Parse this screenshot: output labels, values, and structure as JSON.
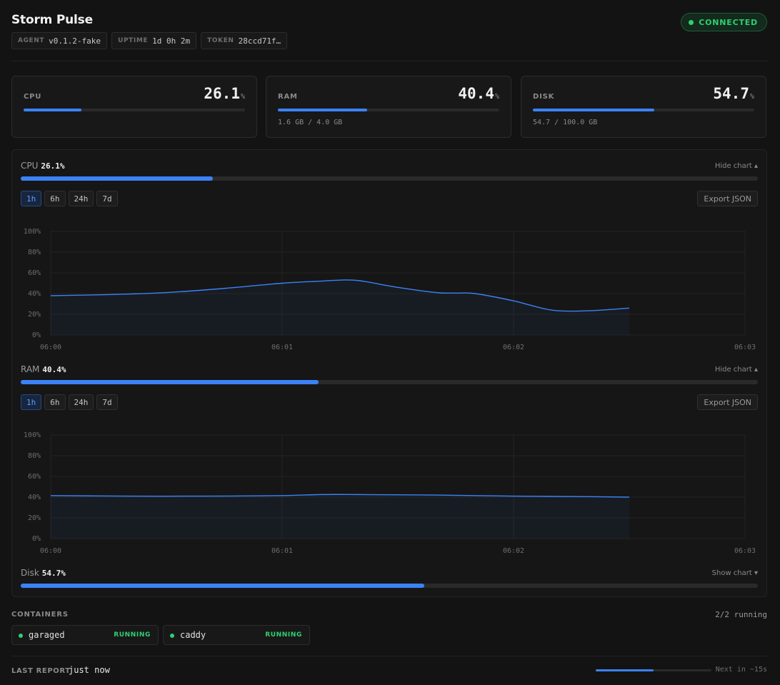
{
  "app": {
    "title": "Storm Pulse",
    "chips": [
      {
        "key": "AGENT",
        "value": "v0.1.2-fake"
      },
      {
        "key": "UPTIME",
        "value": "1d 0h 2m"
      },
      {
        "key": "TOKEN",
        "value": "28ccd71f…"
      }
    ],
    "status": {
      "label": "CONNECTED",
      "color": "#2fd071"
    }
  },
  "cards": [
    {
      "label": "CPU",
      "value": "26.1",
      "unit": "%",
      "percent": 26.1,
      "sub": ""
    },
    {
      "label": "RAM",
      "value": "40.4",
      "unit": "%",
      "percent": 40.4,
      "sub": "1.6 GB / 4.0 GB"
    },
    {
      "label": "DISK",
      "value": "54.7",
      "unit": "%",
      "percent": 54.7,
      "sub": "54.7 / 100.0 GB"
    }
  ],
  "metrics": [
    {
      "name": "CPU",
      "value": "26.1%",
      "percent": 26.1,
      "toggle": "Hide chart ▴"
    },
    {
      "name": "RAM",
      "value": "40.4%",
      "percent": 40.4,
      "toggle": "Hide chart ▴"
    },
    {
      "name": "Disk",
      "value": "54.7%",
      "percent": 54.7,
      "toggle": "Show chart ▾"
    }
  ],
  "controls": {
    "ranges": [
      "1h",
      "6h",
      "24h",
      "7d"
    ],
    "active_range": "1h",
    "export_label": "Export JSON"
  },
  "chart_data": [
    {
      "type": "area",
      "series": [
        {
          "x": [
            "06:00:00",
            "06:00:15",
            "06:00:30",
            "06:00:45",
            "06:01:00",
            "06:01:10",
            "06:01:15",
            "06:01:20",
            "06:01:30",
            "06:01:40",
            "06:01:45",
            "06:01:50",
            "06:02:00",
            "06:02:10",
            "06:02:20",
            "06:02:30"
          ],
          "values": [
            38,
            39,
            41,
            45,
            50,
            52,
            53,
            52.5,
            46,
            41,
            40.5,
            40,
            33,
            24,
            23.5,
            26
          ]
        }
      ],
      "xticks": [
        "06:00",
        "06:01",
        "06:02",
        "06:03"
      ],
      "yticks": [
        "0%",
        "20%",
        "40%",
        "60%",
        "80%",
        "100%"
      ],
      "ylim": [
        0,
        100
      ],
      "grid": true,
      "color": "#3b82f6"
    },
    {
      "type": "area",
      "series": [
        {
          "x": [
            "06:00:00",
            "06:00:20",
            "06:00:40",
            "06:01:00",
            "06:01:10",
            "06:01:20",
            "06:01:40",
            "06:02:00",
            "06:02:20",
            "06:02:30"
          ],
          "values": [
            41.5,
            41,
            41,
            41.5,
            42.5,
            42.5,
            42,
            41,
            40.5,
            40
          ]
        }
      ],
      "xticks": [
        "06:00",
        "06:01",
        "06:02",
        "06:03"
      ],
      "yticks": [
        "0%",
        "20%",
        "40%",
        "60%",
        "80%",
        "100%"
      ],
      "ylim": [
        0,
        100
      ],
      "grid": true,
      "color": "#3b82f6"
    }
  ],
  "containers": {
    "title": "CONTAINERS",
    "count": "2/2 running",
    "items": [
      {
        "name": "garaged",
        "status": "RUNNING"
      },
      {
        "name": "caddy",
        "status": "RUNNING"
      }
    ]
  },
  "footer": {
    "label": "LAST REPORT",
    "value": "just now",
    "next": "Next in ~15s",
    "progress": 0.5
  },
  "colors": {
    "accent": "#3b82f6",
    "ok": "#2fd071",
    "bg": "#131313"
  }
}
